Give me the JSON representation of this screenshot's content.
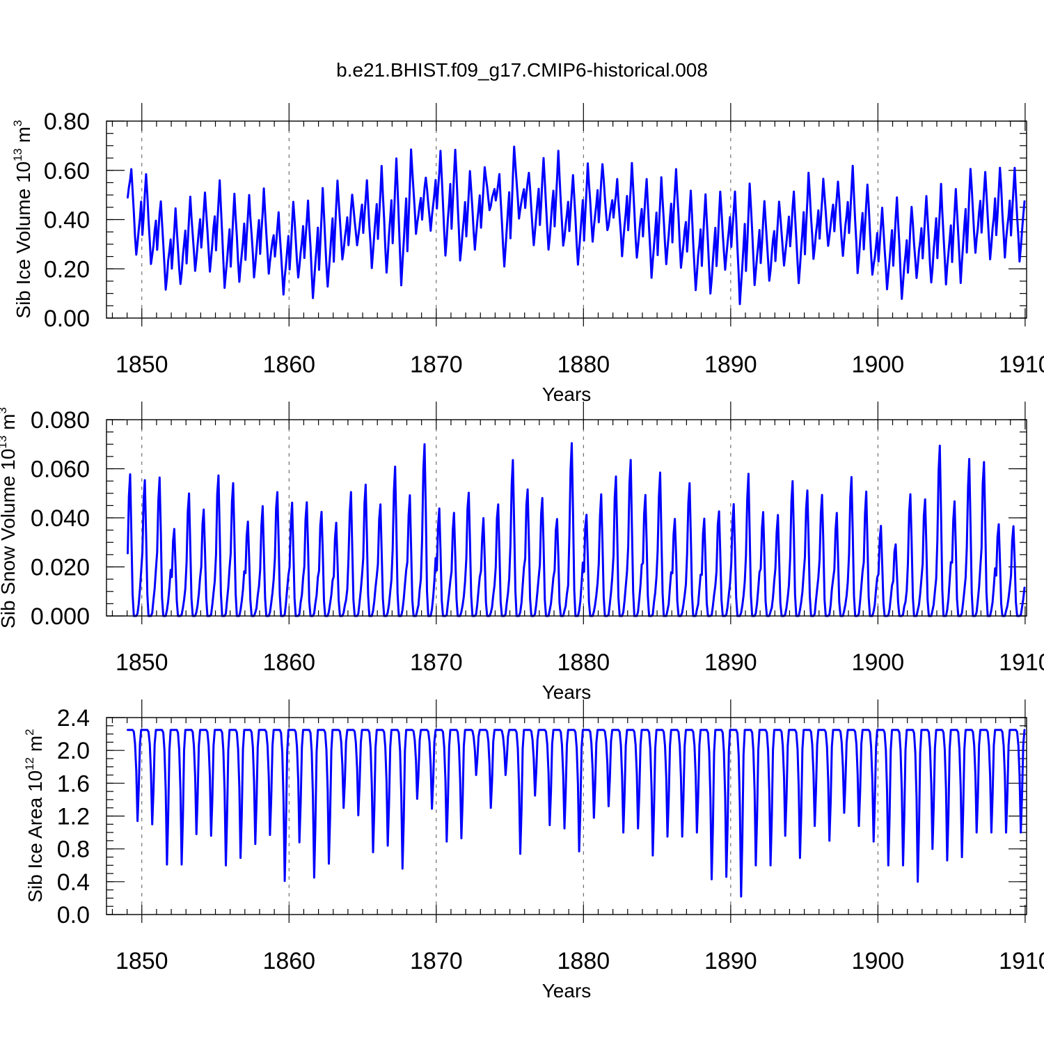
{
  "title": "b.e21.BHIST.f09_g17.CMIP6-historical.008",
  "series_color": "#0000ff",
  "chart_data": [
    {
      "type": "line",
      "id": "ice-volume",
      "title": "",
      "xlabel": "Years",
      "ylabel": "Sib Ice Volume 10",
      "ylabel_exp": "13",
      "ylabel_unit": " m",
      "ylabel_unit_exp": "3",
      "xlim": [
        1847.6,
        1910.1
      ],
      "ylim": [
        0.0,
        0.8
      ],
      "yticks": [
        0.0,
        0.2,
        0.4,
        0.6,
        0.8
      ],
      "ytick_labels": [
        "0.00",
        "0.20",
        "0.40",
        "0.60",
        "0.80"
      ],
      "xticks": [
        1850,
        1860,
        1870,
        1880,
        1890,
        1900,
        1910
      ],
      "xtick_labels": [
        "1850",
        "1860",
        "1870",
        "1880",
        "1890",
        "1900",
        "1910"
      ],
      "grid": "dashed vertical at decades",
      "time_start": 1849.04,
      "points_per_year": 12,
      "annual_min": [
        0.25,
        0.22,
        0.12,
        0.13,
        0.2,
        0.19,
        0.12,
        0.15,
        0.17,
        0.19,
        0.1,
        0.16,
        0.09,
        0.12,
        0.23,
        0.29,
        0.21,
        0.18,
        0.14,
        0.35,
        0.36,
        0.26,
        0.23,
        0.28,
        0.43,
        0.2,
        0.41,
        0.3,
        0.27,
        0.29,
        0.22,
        0.31,
        0.35,
        0.26,
        0.24,
        0.16,
        0.22,
        0.2,
        0.12,
        0.1,
        0.2,
        0.06,
        0.14,
        0.15,
        0.22,
        0.14,
        0.24,
        0.29,
        0.25,
        0.19,
        0.17,
        0.12,
        0.08,
        0.16,
        0.14,
        0.14,
        0.15,
        0.26,
        0.23,
        0.25,
        0.23
      ],
      "annual_max": [
        0.61,
        0.59,
        0.48,
        0.44,
        0.49,
        0.51,
        0.55,
        0.5,
        0.5,
        0.52,
        0.43,
        0.48,
        0.48,
        0.52,
        0.56,
        0.5,
        0.55,
        0.62,
        0.65,
        0.68,
        0.58,
        0.67,
        0.69,
        0.6,
        0.62,
        0.59,
        0.7,
        0.6,
        0.64,
        0.67,
        0.58,
        0.63,
        0.63,
        0.56,
        0.63,
        0.57,
        0.57,
        0.61,
        0.51,
        0.51,
        0.51,
        0.52,
        0.55,
        0.47,
        0.48,
        0.52,
        0.59,
        0.56,
        0.55,
        0.61,
        0.55,
        0.44,
        0.5,
        0.46,
        0.49,
        0.54,
        0.52,
        0.61,
        0.6,
        0.62,
        0.61
      ]
    },
    {
      "type": "line",
      "id": "snow-volume",
      "title": "",
      "xlabel": "Years",
      "ylabel": "Sib Snow Volume 10",
      "ylabel_exp": "13",
      "ylabel_unit": " m",
      "ylabel_unit_exp": "3",
      "xlim": [
        1847.6,
        1910.1
      ],
      "ylim": [
        0.0,
        0.08
      ],
      "yticks": [
        0.0,
        0.02,
        0.04,
        0.06,
        0.08
      ],
      "ytick_labels": [
        "0.000",
        "0.020",
        "0.040",
        "0.060",
        "0.080"
      ],
      "xticks": [
        1850,
        1860,
        1870,
        1880,
        1890,
        1900,
        1910
      ],
      "xtick_labels": [
        "1850",
        "1860",
        "1870",
        "1880",
        "1890",
        "1900",
        "1910"
      ],
      "grid": "dashed vertical at decades",
      "time_start": 1849.04,
      "points_per_year": 12,
      "annual_max": [
        0.058,
        0.056,
        0.056,
        0.036,
        0.049,
        0.044,
        0.058,
        0.055,
        0.039,
        0.044,
        0.051,
        0.046,
        0.047,
        0.043,
        0.037,
        0.05,
        0.053,
        0.046,
        0.061,
        0.049,
        0.071,
        0.043,
        0.042,
        0.051,
        0.039,
        0.046,
        0.064,
        0.052,
        0.048,
        0.04,
        0.07,
        0.042,
        0.049,
        0.056,
        0.063,
        0.049,
        0.058,
        0.04,
        0.054,
        0.039,
        0.043,
        0.046,
        0.057,
        0.042,
        0.041,
        0.054,
        0.052,
        0.05,
        0.042,
        0.057,
        0.05,
        0.037,
        0.03,
        0.05,
        0.048,
        0.07,
        0.047,
        0.063,
        0.063,
        0.037,
        0.037
      ]
    },
    {
      "type": "line",
      "id": "ice-area",
      "title": "",
      "xlabel": "Years",
      "ylabel": "Sib Ice Area 10",
      "ylabel_exp": "12",
      "ylabel_unit": " m",
      "ylabel_unit_exp": "2",
      "xlim": [
        1847.6,
        1910.1
      ],
      "ylim": [
        0.0,
        2.4
      ],
      "yticks": [
        0.0,
        0.4,
        0.8,
        1.2,
        1.6,
        2.0,
        2.4
      ],
      "ytick_labels": [
        "0.0",
        "0.4",
        "0.8",
        "1.2",
        "1.6",
        "2.0",
        "2.4"
      ],
      "xticks": [
        1850,
        1860,
        1870,
        1880,
        1890,
        1900,
        1910
      ],
      "xtick_labels": [
        "1850",
        "1860",
        "1870",
        "1880",
        "1890",
        "1900",
        "1910"
      ],
      "grid": "dashed vertical at decades",
      "time_start": 1849.04,
      "points_per_year": 12,
      "annual_max": 2.25,
      "annual_min": [
        1.14,
        1.1,
        0.61,
        0.61,
        0.98,
        0.96,
        0.6,
        0.69,
        0.86,
        0.97,
        0.41,
        0.88,
        0.45,
        0.62,
        1.3,
        1.21,
        0.76,
        0.84,
        0.56,
        1.41,
        1.29,
        0.89,
        0.93,
        1.7,
        1.3,
        1.7,
        0.74,
        1.45,
        1.09,
        1.05,
        0.77,
        1.18,
        1.32,
        1.0,
        1.05,
        0.72,
        0.95,
        0.95,
        1.0,
        0.43,
        0.46,
        0.22,
        0.6,
        0.6,
        0.96,
        0.69,
        1.08,
        0.9,
        1.24,
        1.08,
        0.89,
        0.6,
        0.6,
        0.4,
        0.8,
        0.66,
        0.7,
        1.0,
        1.0,
        1.0,
        1.0
      ]
    }
  ]
}
